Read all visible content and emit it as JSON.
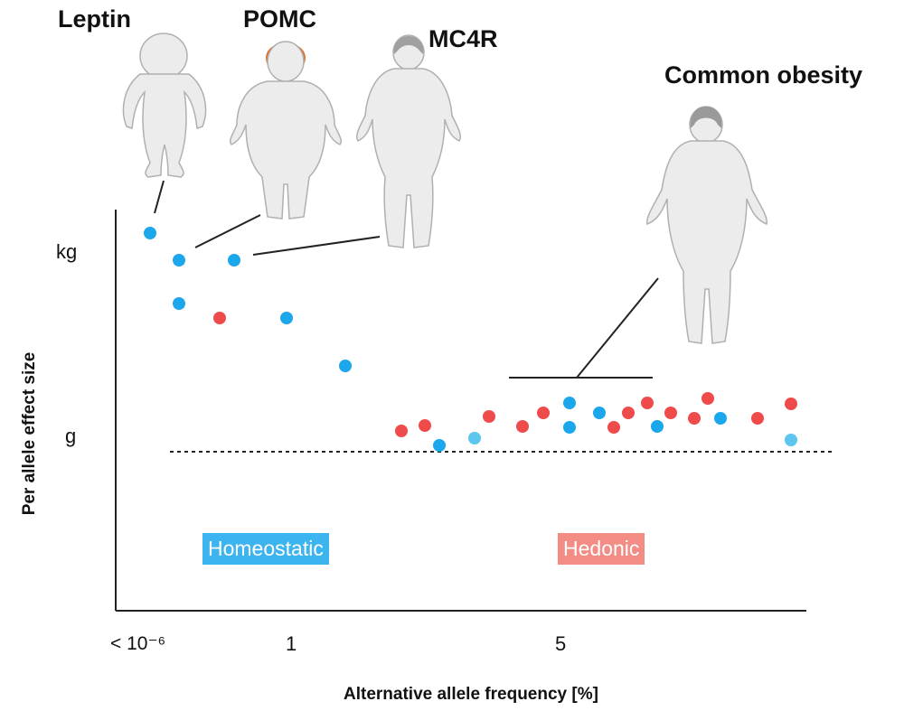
{
  "figures": {
    "leptin": "Leptin",
    "pomc": "POMC",
    "mc4r": "MC4R",
    "common": "Common obesity"
  },
  "axes": {
    "x_title": "Alternative allele frequency [%]",
    "y_title": "Per allele effect size",
    "x_ticks": [
      "< 10⁻⁶",
      "1",
      "5"
    ],
    "y_ticks": [
      "kg",
      "g"
    ]
  },
  "groups": {
    "homeostatic": "Homeostatic",
    "hedonic": "Hedonic"
  },
  "colors": {
    "homeostatic": "#1aa7ec",
    "homeostatic_light": "#5cc6ef",
    "hedonic": "#ef4b4b",
    "homeostatic_tag_bg": "#3cb4ef",
    "hedonic_tag_bg": "#f28c84",
    "hair": "#d8702a",
    "figure_fill": "#ececec",
    "figure_stroke": "#b0b0b0"
  },
  "chart_data": {
    "type": "scatter",
    "x_scale": "qualitative",
    "y_scale": "qualitative",
    "reference_line": "dotted horizontal baseline near g",
    "points": [
      {
        "group": "homeostatic",
        "i": 0
      },
      {
        "group": "homeostatic",
        "i": 1
      },
      {
        "group": "homeostatic",
        "i": 2
      },
      {
        "group": "homeostatic",
        "i": 3
      },
      {
        "group": "hedonic",
        "i": 4
      },
      {
        "group": "homeostatic",
        "i": 5
      },
      {
        "group": "homeostatic",
        "i": 6
      },
      {
        "group": "hedonic",
        "i": 7
      },
      {
        "group": "hedonic",
        "i": 8
      },
      {
        "group": "homeostatic",
        "i": 9
      },
      {
        "group": "homeostatic_light",
        "i": 10
      },
      {
        "group": "hedonic",
        "i": 11
      },
      {
        "group": "hedonic",
        "i": 12
      },
      {
        "group": "hedonic",
        "i": 13
      },
      {
        "group": "homeostatic",
        "i": 14
      },
      {
        "group": "homeostatic",
        "i": 15
      },
      {
        "group": "homeostatic",
        "i": 16
      },
      {
        "group": "hedonic",
        "i": 17
      },
      {
        "group": "hedonic",
        "i": 18
      },
      {
        "group": "hedonic",
        "i": 19
      },
      {
        "group": "homeostatic",
        "i": 20
      },
      {
        "group": "hedonic",
        "i": 21
      },
      {
        "group": "hedonic",
        "i": 22
      },
      {
        "group": "hedonic",
        "i": 23
      },
      {
        "group": "homeostatic",
        "i": 24
      },
      {
        "group": "hedonic",
        "i": 25
      },
      {
        "group": "hedonic",
        "i": 26
      },
      {
        "group": "homeostatic_light",
        "i": 27
      }
    ]
  }
}
